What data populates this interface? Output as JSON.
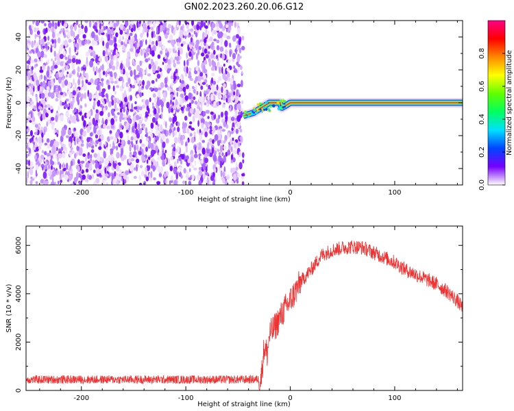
{
  "title": "GN02.2023.260.20.06.G12",
  "chart_data": [
    {
      "type": "heatmap",
      "xlabel": "Height of straight line (km)",
      "ylabel": "Frequency (Hz)",
      "xlim": [
        -253,
        165
      ],
      "ylim": [
        -50,
        50
      ],
      "x_ticks": [
        -200,
        -100,
        0,
        100
      ],
      "y_ticks": [
        -40,
        -20,
        0,
        20,
        40
      ],
      "colorbar": {
        "label": "Normalized spectral amplitude",
        "range": [
          0,
          1
        ],
        "ticks": [
          "0.0",
          "0.2",
          "0.4",
          "0.6",
          "0.8"
        ],
        "colormap": [
          "#ffffff",
          "#7700ff",
          "#0044ff",
          "#00e0ff",
          "#00ff60",
          "#60ff00",
          "#ffff00",
          "#ff8800",
          "#ff0000",
          "#ff0088"
        ]
      },
      "regions": [
        {
          "name": "noise",
          "x_range": [
            -253,
            -45
          ],
          "freq_range": [
            -50,
            50
          ],
          "amplitude": "low (0.0-0.1), scattered"
        },
        {
          "name": "signal",
          "x_range": [
            -45,
            165
          ],
          "freq_trace": [
            [
              -45,
              -8
            ],
            [
              -35,
              -6
            ],
            [
              -25,
              -2
            ],
            [
              -20,
              0
            ],
            [
              -10,
              0
            ],
            [
              -8,
              -3
            ],
            [
              -5,
              -2
            ],
            [
              0,
              0
            ],
            [
              165,
              0
            ]
          ],
          "amplitude": "~0.9 on center line"
        }
      ],
      "grid": false
    },
    {
      "type": "line",
      "xlabel": "Height of straight line (km)",
      "ylabel": "SNR (10 * v/v)",
      "xlim": [
        -253,
        165
      ],
      "ylim": [
        0,
        6800
      ],
      "x_ticks": [
        -200,
        -100,
        0,
        100
      ],
      "y_ticks": [
        0,
        2000,
        4000,
        6000
      ],
      "series": [
        {
          "color": "#ee3333",
          "x": [
            -253,
            -200,
            -150,
            -100,
            -50,
            -28,
            -25,
            -22,
            -20,
            -15,
            -10,
            -5,
            0,
            10,
            20,
            30,
            40,
            50,
            60,
            70,
            80,
            90,
            100,
            110,
            120,
            130,
            140,
            150,
            160,
            165
          ],
          "y": [
            450,
            450,
            450,
            450,
            450,
            460,
            1800,
            1500,
            2300,
            2600,
            3000,
            3400,
            3700,
            4500,
            5000,
            5600,
            5800,
            5900,
            5950,
            5900,
            5700,
            5500,
            5300,
            5000,
            4800,
            4600,
            4400,
            4100,
            3700,
            3400
          ],
          "noise_amplitude": 350
        }
      ],
      "grid": false
    }
  ]
}
